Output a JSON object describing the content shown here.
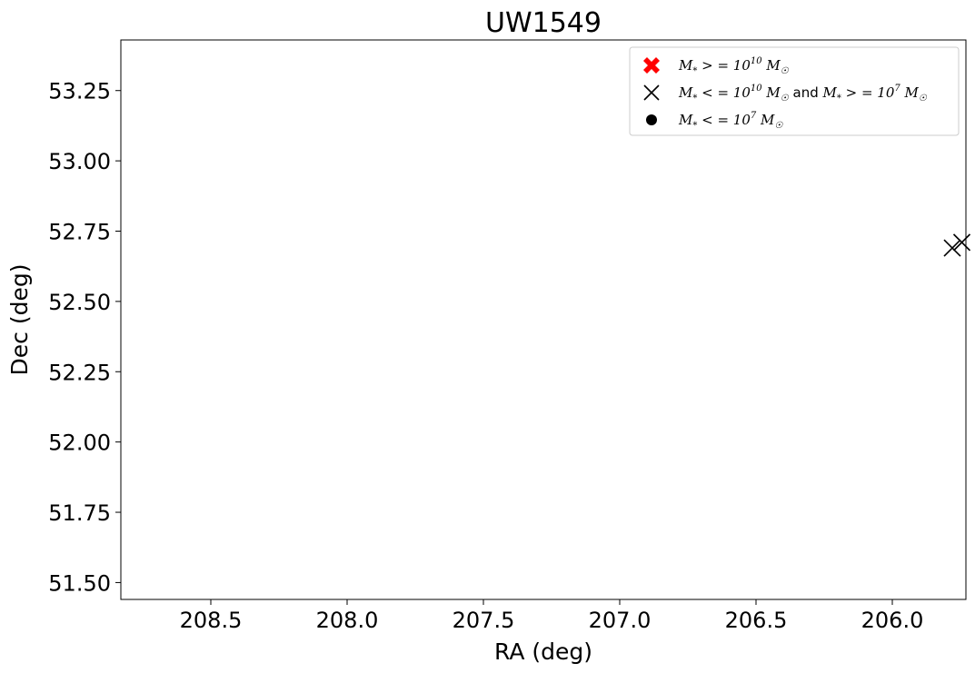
{
  "chart_data": {
    "type": "scatter",
    "title": "UW1549",
    "xlabel": "RA (deg)",
    "ylabel": "Dec (deg)",
    "xlim": [
      208.83,
      205.73
    ],
    "ylim": [
      51.44,
      53.43
    ],
    "x_inverted": true,
    "xticks": [
      208.5,
      208.0,
      207.5,
      207.0,
      206.5,
      206.0
    ],
    "xtick_labels": [
      "208.5",
      "208.0",
      "207.5",
      "207.0",
      "206.5",
      "206.0"
    ],
    "yticks": [
      51.5,
      51.75,
      52.0,
      52.25,
      52.5,
      52.75,
      53.0,
      53.25
    ],
    "ytick_labels": [
      "51.50",
      "51.75",
      "52.00",
      "52.25",
      "52.50",
      "52.75",
      "53.00",
      "53.25"
    ],
    "grid": false,
    "legend_position": "top-right",
    "series": [
      {
        "name": "M* >= 10^10 M☉",
        "marker": "filled-x",
        "color": "#ff0000",
        "points": []
      },
      {
        "name": "M* <= 10^10 M☉ and M* >= 10^7 M☉",
        "marker": "x",
        "color": "#000000",
        "points": [
          {
            "x": 205.78,
            "y": 52.69
          },
          {
            "x": 205.745,
            "y": 52.71
          }
        ]
      },
      {
        "name": "M* <= 10^7 M☉",
        "marker": "dot",
        "color": "#000000",
        "points": []
      }
    ]
  }
}
